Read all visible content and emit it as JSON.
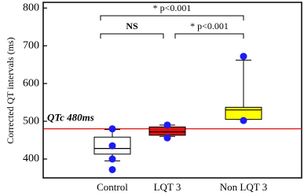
{
  "chart_data": {
    "type": "box",
    "y_label": "Corrected QT intervals (ms)",
    "categories": [
      "Control",
      "LQT 3",
      "Non LQT 3"
    ],
    "boxes": [
      {
        "whisker_low": 395,
        "q1": 413,
        "median": 428,
        "q3": 458,
        "whisker_high": 478,
        "color": "#ffffff",
        "points": [
          480,
          435,
          400,
          372
        ]
      },
      {
        "whisker_low": 460,
        "q1": 463,
        "median": 472,
        "q3": 485,
        "whisker_high": 490,
        "color": "#e01010",
        "points": [
          490,
          456
        ]
      },
      {
        "whisker_low": 505,
        "q1": 505,
        "median": 530,
        "q3": 537,
        "whisker_high": 662,
        "color": "#ffff00",
        "points": [
          672,
          502
        ]
      }
    ],
    "point_color": "#1c1cf0",
    "reference_line": {
      "value": 480,
      "label": "QTc 480ms",
      "color": "#e01010"
    },
    "annotations": [
      "* p<0.001",
      "NS",
      "* p<0.001"
    ],
    "ylim": [
      350,
      815
    ],
    "yticks": [
      400,
      500,
      600,
      700,
      800
    ]
  }
}
